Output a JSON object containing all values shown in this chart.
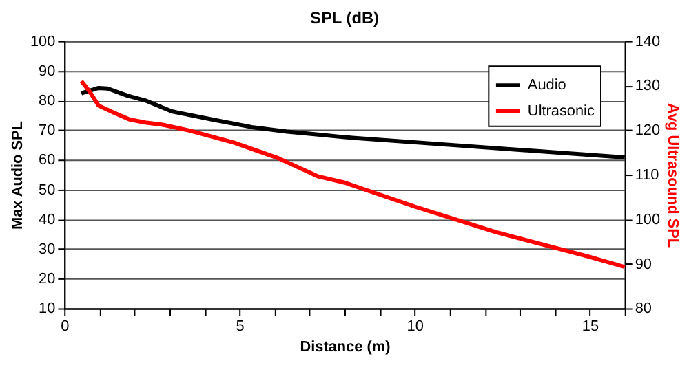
{
  "chart_data": {
    "type": "line",
    "title": "SPL (dB)",
    "xlabel": "Distance (m)",
    "ylabel": "Max Audio SPL",
    "y2label": "Avg Ultrasound SPL",
    "xlim": [
      0,
      16
    ],
    "xticks": [
      0,
      {
        "value": 1,
        "label": null
      },
      {
        "value": 2,
        "label": null
      },
      {
        "value": 3,
        "label": null
      },
      {
        "value": 4,
        "label": null
      },
      5,
      {
        "value": 6,
        "label": null
      },
      {
        "value": 7,
        "label": null
      },
      {
        "value": 8,
        "label": null
      },
      {
        "value": 9,
        "label": null
      },
      10,
      {
        "value": 11,
        "label": null
      },
      {
        "value": 12,
        "label": null
      },
      {
        "value": 13,
        "label": null
      },
      {
        "value": 14,
        "label": null
      },
      15,
      {
        "value": 16,
        "label": null
      }
    ],
    "ylim": [
      10,
      100
    ],
    "yticks": [
      10,
      20,
      30,
      40,
      50,
      60,
      70,
      80,
      90,
      100
    ],
    "y2lim": [
      80,
      140
    ],
    "y2ticks": [
      80,
      90,
      100,
      110,
      120,
      130,
      140
    ],
    "grid": "y",
    "legend": "top right",
    "marker": "none",
    "line_style": "solid",
    "series": [
      {
        "name": "Audio",
        "color": "#000000",
        "x": [
          0.49,
          0.98,
          1.24,
          1.8,
          2.31,
          3.07,
          4.21,
          5.35,
          6.36,
          7.25,
          8.01,
          11.05,
          16
        ],
        "values": [
          82.4,
          84.2,
          84,
          81.6,
          80,
          76.3,
          73.6,
          71,
          69.5,
          68.5,
          67.6,
          65,
          60.8
        ]
      },
      {
        "name": "Ultrasonic",
        "color": "#ff0000",
        "axis": "y2",
        "x": [
          0.49,
          0.72,
          0.98,
          1.42,
          1.86,
          2.31,
          2.81,
          3.57,
          4.84,
          6.11,
          7.25,
          8.01,
          10.02,
          12.32,
          14.98,
          16
        ],
        "values": [
          131,
          128.7,
          125.5,
          123.9,
          122.4,
          121.7,
          121.2,
          119.9,
          117.2,
          113.7,
          109.6,
          108.2,
          102.8,
          97.1,
          91.6,
          89.3
        ]
      }
    ]
  }
}
